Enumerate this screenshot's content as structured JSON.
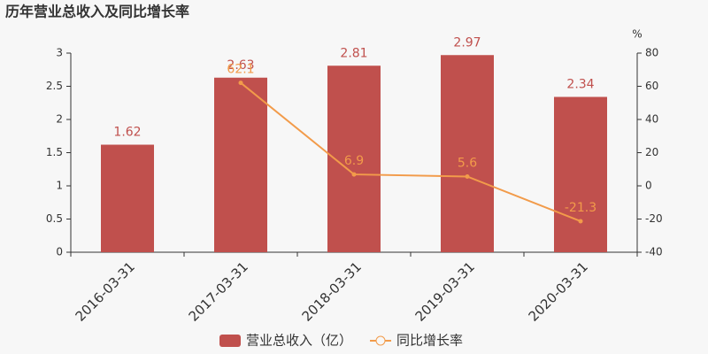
{
  "chart_data": {
    "type": "bar-line",
    "title": "历年营业总收入及同比增长率",
    "categories": [
      "2016-03-31",
      "2017-03-31",
      "2018-03-31",
      "2019-03-31",
      "2020-03-31"
    ],
    "series": [
      {
        "name": "营业总收入（亿）",
        "type": "bar",
        "color": "#c0504d",
        "values": [
          1.62,
          2.63,
          2.81,
          2.97,
          2.34
        ]
      },
      {
        "name": "同比增长率",
        "type": "line",
        "axis": "y2",
        "color": "#f29b4a",
        "values": [
          null,
          62.1,
          6.9,
          5.6,
          -21.3
        ]
      }
    ],
    "ylim": [
      0,
      3
    ],
    "yticks": [
      0,
      0.5,
      1,
      1.5,
      2,
      2.5,
      3
    ],
    "y2lim": [
      -40,
      80
    ],
    "y2ticks": [
      -40,
      -20,
      0,
      20,
      40,
      60,
      80
    ],
    "y2_label": "%",
    "legend": "bottom"
  }
}
